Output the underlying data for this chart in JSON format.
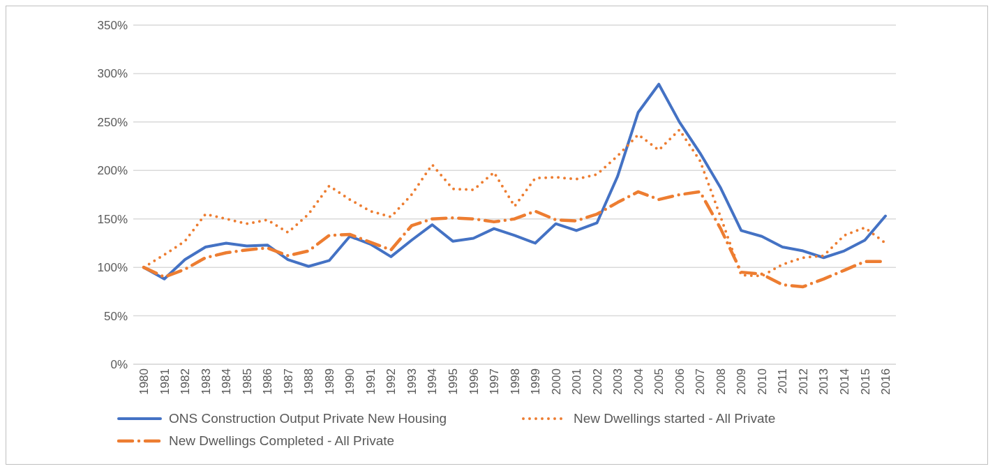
{
  "chart_data": {
    "type": "line",
    "categories": [
      "1980",
      "1981",
      "1982",
      "1983",
      "1984",
      "1985",
      "1986",
      "1987",
      "1988",
      "1989",
      "1990",
      "1991",
      "1992",
      "1993",
      "1994",
      "1995",
      "1996",
      "1997",
      "1998",
      "1999",
      "2000",
      "2001",
      "2002",
      "2003",
      "2004",
      "2005",
      "2006",
      "2007",
      "2008",
      "2009",
      "2010",
      "2011",
      "2012",
      "2013",
      "2014",
      "2015",
      "2016"
    ],
    "series": [
      {
        "name": "ONS Construction Output Private New Housing",
        "color": "#4472c4",
        "line_style": "solid",
        "values": [
          100,
          88,
          108,
          121,
          125,
          122,
          123,
          108,
          101,
          107,
          132,
          124,
          111,
          128,
          144,
          127,
          130,
          140,
          133,
          125,
          145,
          138,
          146,
          194,
          260,
          289,
          250,
          218,
          182,
          138,
          132,
          121,
          117,
          110,
          117,
          128,
          153
        ]
      },
      {
        "name": "New Dwellings started - All Private",
        "color": "#ed7d31",
        "line_style": "dotted",
        "values": [
          100,
          113,
          127,
          155,
          150,
          145,
          149,
          136,
          155,
          184,
          170,
          158,
          152,
          175,
          206,
          181,
          180,
          198,
          163,
          192,
          193,
          191,
          196,
          215,
          237,
          221,
          242,
          210,
          152,
          92,
          91,
          103,
          110,
          112,
          133,
          141,
          125
        ]
      },
      {
        "name": "New Dwellings Completed - All Private",
        "color": "#ed7d31",
        "line_style": "dashed",
        "values": [
          100,
          90,
          98,
          110,
          115,
          118,
          120,
          112,
          117,
          133,
          134,
          126,
          118,
          143,
          150,
          151,
          150,
          147,
          150,
          158,
          149,
          148,
          155,
          167,
          178,
          170,
          175,
          178,
          140,
          95,
          93,
          82,
          80,
          88,
          97,
          106,
          106
        ]
      }
    ],
    "ylim": [
      0,
      350
    ],
    "yticks": [
      {
        "value": 0,
        "label": "0%"
      },
      {
        "value": 50,
        "label": "50%"
      },
      {
        "value": 100,
        "label": "100%"
      },
      {
        "value": 150,
        "label": "150%"
      },
      {
        "value": 200,
        "label": "200%"
      },
      {
        "value": 250,
        "label": "250%"
      },
      {
        "value": 300,
        "label": "300%"
      },
      {
        "value": 350,
        "label": "350%"
      }
    ],
    "grid": "y",
    "legend": "bottom",
    "marker": "none"
  }
}
